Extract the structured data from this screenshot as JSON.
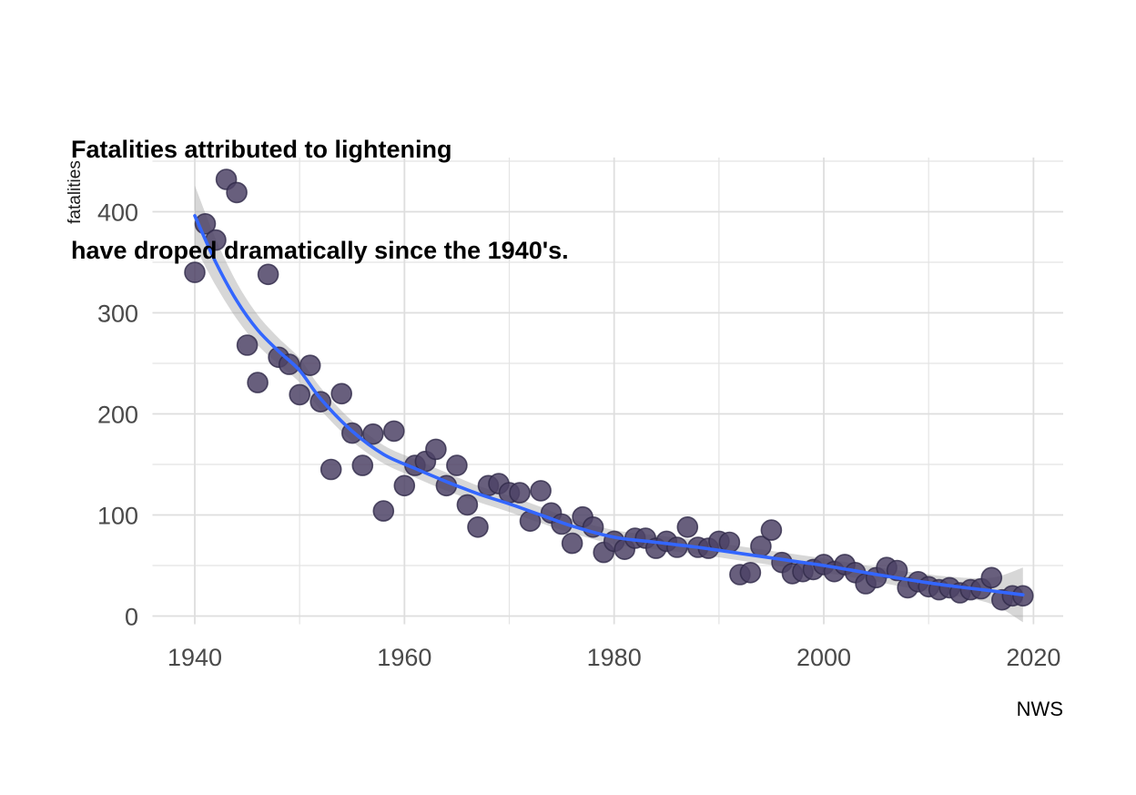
{
  "chart_data": {
    "type": "scatter",
    "title_lines": [
      "Fatalities attributed to lightening",
      "have droped dramatically since the 1940's."
    ],
    "xlabel": "",
    "ylabel": "fatalities",
    "caption": "NWS",
    "legend": "none",
    "grid": "on",
    "xlim": [
      1936,
      2023
    ],
    "ylim": [
      -8,
      453
    ],
    "x_ticks": [
      1940,
      1960,
      1980,
      2000,
      2020
    ],
    "x_minor_ticks": [
      1950,
      1970,
      1990,
      2010
    ],
    "y_ticks": [
      0,
      100,
      200,
      300,
      400
    ],
    "y_minor_ticks": [
      50,
      150,
      250,
      350,
      450
    ],
    "points": {
      "years": [
        1940,
        1941,
        1942,
        1943,
        1944,
        1945,
        1946,
        1947,
        1948,
        1949,
        1950,
        1951,
        1952,
        1953,
        1954,
        1955,
        1956,
        1957,
        1958,
        1959,
        1960,
        1961,
        1962,
        1963,
        1964,
        1965,
        1966,
        1967,
        1968,
        1969,
        1970,
        1971,
        1972,
        1973,
        1974,
        1975,
        1976,
        1977,
        1978,
        1979,
        1980,
        1981,
        1982,
        1983,
        1984,
        1985,
        1986,
        1987,
        1988,
        1989,
        1990,
        1991,
        1992,
        1993,
        1994,
        1995,
        1996,
        1997,
        1998,
        1999,
        2000,
        2001,
        2002,
        2003,
        2004,
        2005,
        2006,
        2007,
        2008,
        2009,
        2010,
        2011,
        2012,
        2013,
        2014,
        2015,
        2016,
        2017,
        2018,
        2019
      ],
      "fatalities": [
        340,
        388,
        372,
        432,
        419,
        268,
        231,
        338,
        256,
        249,
        219,
        248,
        212,
        145,
        220,
        181,
        149,
        180,
        104,
        183,
        129,
        149,
        153,
        165,
        129,
        149,
        110,
        88,
        129,
        131,
        122,
        122,
        94,
        124,
        102,
        91,
        72,
        98,
        88,
        63,
        74,
        66,
        77,
        77,
        67,
        74,
        68,
        88,
        68,
        67,
        74,
        73,
        41,
        43,
        69,
        85,
        53,
        42,
        44,
        46,
        51,
        44,
        51,
        43,
        32,
        38,
        48,
        45,
        28,
        34,
        29,
        26,
        28,
        23,
        26,
        27,
        38,
        16,
        20,
        20
      ]
    },
    "smooth": {
      "method": "loess",
      "years": [
        1940,
        1942,
        1944,
        1946,
        1948,
        1950,
        1952,
        1955,
        1958,
        1961,
        1964,
        1967,
        1970,
        1973,
        1976,
        1980,
        1984,
        1988,
        1992,
        1996,
        2000,
        2004,
        2008,
        2012,
        2016,
        2019
      ],
      "fit": [
        396,
        350,
        312,
        283,
        262,
        243,
        215,
        183,
        160,
        146,
        133,
        121,
        111,
        100,
        89,
        78,
        73,
        68,
        62,
        56,
        50,
        43,
        36,
        30,
        25,
        21
      ],
      "half_width": [
        30,
        23,
        18,
        15,
        13,
        12,
        11,
        10,
        9,
        9,
        9,
        8,
        8,
        8,
        7,
        7,
        7,
        7,
        7,
        7,
        7,
        7,
        8,
        9,
        13,
        27
      ]
    },
    "colors": {
      "background": "#ffffff",
      "point_fill": "rgba(77,67,102,0.85)",
      "point_stroke": "rgba(48,41,72,0.8)",
      "trend_line": "#3366FF",
      "ribbon": "rgba(155,155,155,0.4)",
      "grid_major": "#dedede",
      "grid_minor": "#e4e4e4",
      "tick_text": "#4a4a4a",
      "title_text": "#000000",
      "axis_title_text": "#1a1a1a",
      "caption_text": "#000000"
    }
  }
}
